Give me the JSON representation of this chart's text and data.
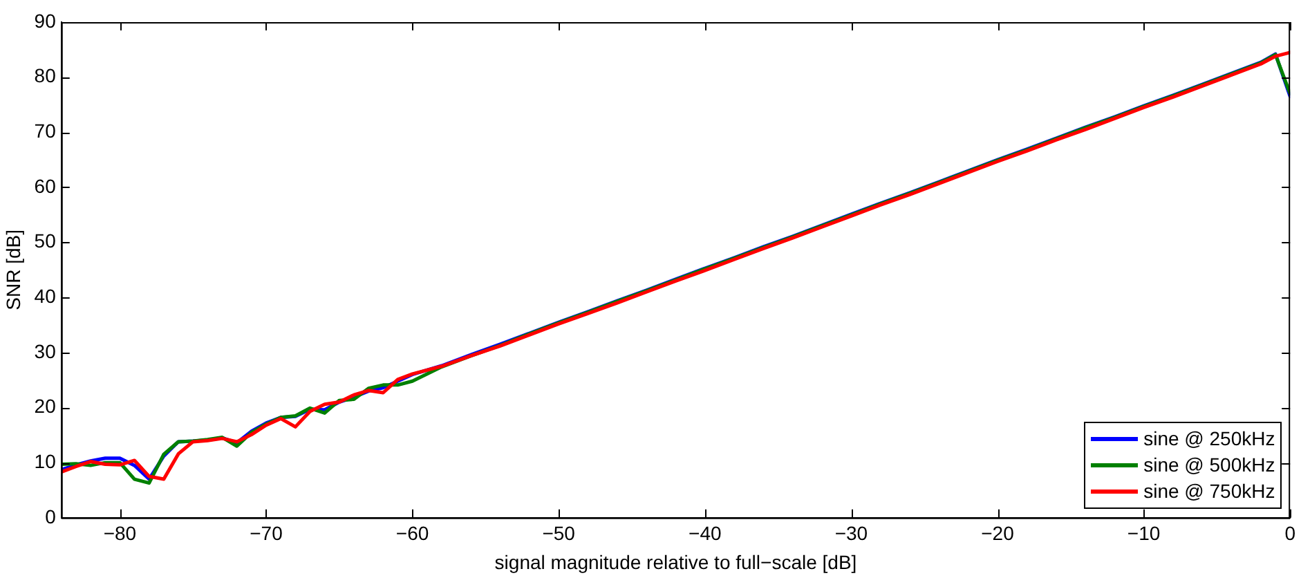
{
  "chart_data": {
    "type": "line",
    "xlabel": "signal magnitude relative to full−scale [dB]",
    "ylabel": "SNR [dB]",
    "x": [
      -84,
      -83,
      -82,
      -81,
      -80,
      -79,
      -78,
      -77,
      -76,
      -75,
      -74,
      -73,
      -72,
      -71,
      -70,
      -69,
      -68,
      -67,
      -66,
      -65,
      -64,
      -63,
      -62,
      -61,
      -60,
      -58,
      -56,
      -54,
      -52,
      -50,
      -48,
      -46,
      -44,
      -42,
      -40,
      -38,
      -36,
      -34,
      -32,
      -30,
      -28,
      -26,
      -24,
      -22,
      -20,
      -18,
      -16,
      -14,
      -12,
      -10,
      -8,
      -6,
      -4,
      -2,
      -1,
      0
    ],
    "series": [
      {
        "name": "sine @ 250kHz",
        "color": "#0000ff",
        "values": [
          8.7,
          9.6,
          10.3,
          10.8,
          10.8,
          9.5,
          7.0,
          11.2,
          13.8,
          13.9,
          14.1,
          14.5,
          13.6,
          15.7,
          17.2,
          18.2,
          18.4,
          19.7,
          19.6,
          21.0,
          21.9,
          23.0,
          23.6,
          24.8,
          26.0,
          27.6,
          29.6,
          31.5,
          33.5,
          35.5,
          37.4,
          39.4,
          41.3,
          43.3,
          45.3,
          47.2,
          49.2,
          51.1,
          53.1,
          55.1,
          57.1,
          59.0,
          61.0,
          63.0,
          65.0,
          66.9,
          68.9,
          70.9,
          72.8,
          74.8,
          76.7,
          78.7,
          80.7,
          82.7,
          84.2,
          76.5
        ]
      },
      {
        "name": "sine @ 500kHz",
        "color": "#008000",
        "values": [
          9.7,
          9.8,
          9.5,
          10.0,
          10.0,
          7.0,
          6.3,
          11.5,
          13.8,
          13.9,
          14.2,
          14.6,
          13.0,
          15.5,
          17.0,
          18.2,
          18.5,
          19.9,
          19.0,
          21.3,
          21.5,
          23.5,
          24.1,
          24.1,
          24.8,
          27.4,
          29.4,
          31.3,
          33.4,
          35.4,
          37.3,
          39.3,
          41.2,
          43.2,
          45.2,
          47.1,
          49.1,
          51.0,
          53.0,
          55.0,
          57.0,
          58.9,
          60.9,
          62.9,
          64.9,
          66.8,
          68.8,
          70.8,
          72.7,
          74.7,
          76.6,
          78.6,
          80.6,
          82.6,
          84.1,
          77.0
        ]
      },
      {
        "name": "sine @ 750kHz",
        "color": "#ff0000",
        "values": [
          8.3,
          9.3,
          10.2,
          9.7,
          9.6,
          10.4,
          7.5,
          7.0,
          11.6,
          13.8,
          14.0,
          14.4,
          13.8,
          15.1,
          16.8,
          18.0,
          16.5,
          19.3,
          20.6,
          21.0,
          22.3,
          23.1,
          22.7,
          25.1,
          26.1,
          27.5,
          29.4,
          31.2,
          33.2,
          35.2,
          37.1,
          39.0,
          41.0,
          43.0,
          44.9,
          46.9,
          48.9,
          50.8,
          52.8,
          54.8,
          56.8,
          58.7,
          60.7,
          62.7,
          64.7,
          66.6,
          68.6,
          70.5,
          72.5,
          74.5,
          76.4,
          78.4,
          80.4,
          82.4,
          83.8,
          84.5
        ]
      }
    ],
    "xlim": [
      -84,
      0
    ],
    "xticks": [
      {
        "value": -80,
        "label": "−80"
      },
      {
        "value": -70,
        "label": "−70"
      },
      {
        "value": -60,
        "label": "−60"
      },
      {
        "value": -50,
        "label": "−50"
      },
      {
        "value": -40,
        "label": "−40"
      },
      {
        "value": -30,
        "label": "−30"
      },
      {
        "value": -20,
        "label": "−20"
      },
      {
        "value": -10,
        "label": "−10"
      },
      0
    ],
    "ylim": [
      0,
      90
    ],
    "yticks": [
      0,
      10,
      20,
      30,
      40,
      50,
      60,
      70,
      80,
      90
    ],
    "legend": "bottom right",
    "marker": "none",
    "line_style": "solid"
  }
}
